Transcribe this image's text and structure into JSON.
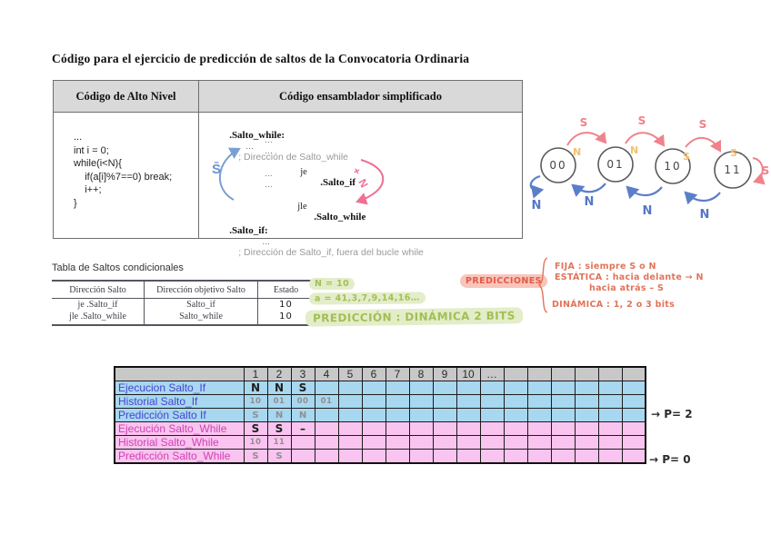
{
  "title": "Código para el ejercicio de predicción de saltos de la Convocatoria Ordinaria",
  "code_table": {
    "header_left": "Código de Alto Nivel",
    "header_right": "Código ensamblador simplificado",
    "code_lines": [
      "...",
      "int i = 0;",
      "while(i<N){",
      "    if(a[i]%7==0) break;",
      "    i++;",
      "}"
    ],
    "asm": {
      "label_while": ".Salto_while:",
      "dots": "...",
      "comment_while": "; Dirección de Salto_while",
      "je": "je",
      "je_target": ".Salto_if",
      "jle": "jle",
      "jle_target": ".Salto_while",
      "label_if": ".Salto_if:",
      "comment_if": "; Dirección de Salto_if, fuera del bucle while",
      "blue_label": "S̄",
      "pink_label": "+ N"
    }
  },
  "state_diagram": {
    "states": [
      "00",
      "01",
      "10",
      "11"
    ],
    "taken_label": "S",
    "not_taken_label": "N",
    "outputs": [
      "N",
      "N",
      "S",
      "S"
    ]
  },
  "saltos_table": {
    "caption": "Tabla de Saltos condicionales",
    "headers": [
      "Dirección Salto",
      "Dirección objetivo Salto",
      "Estado"
    ],
    "rows": [
      {
        "salto": "je .Salto_if",
        "objetivo": "Salto_if",
        "estado": "10"
      },
      {
        "salto": "jle .Salto_while",
        "objetivo": "Salto_while",
        "estado": "10"
      }
    ]
  },
  "notes": {
    "green": [
      "N = 10",
      "a = 41,3,7,9,14,16…",
      "PREDICCIÓN : DINÁMICA 2 BITS"
    ],
    "pink_label": "PREDICCIONES",
    "red_items": [
      "FIJA : siempre S o N",
      "ESTÁTICA : hacia delante → N",
      "hacia atrás – S",
      "DINÁMICA : 1, 2 o 3 bits"
    ]
  },
  "exec_table": {
    "col_headers": [
      "",
      "1",
      "2",
      "3",
      "4",
      "5",
      "6",
      "7",
      "8",
      "9",
      "10",
      "…",
      "",
      "",
      "",
      "",
      "",
      ""
    ],
    "rows": [
      {
        "label": "Ejecucion Salto_If",
        "cells": [
          "N",
          "N",
          "S",
          "",
          "",
          "",
          "",
          "",
          "",
          "",
          "",
          "",
          "",
          "",
          "",
          "",
          ""
        ]
      },
      {
        "label": "Historial Salto_If",
        "cells": [
          "10",
          "01",
          "00",
          "01",
          "",
          "",
          "",
          "",
          "",
          "",
          "",
          "",
          "",
          "",
          "",
          "",
          ""
        ]
      },
      {
        "label": "Predicción Salto If",
        "cells": [
          "S",
          "N",
          "N",
          "",
          "",
          "",
          "",
          "",
          "",
          "",
          "",
          "",
          "",
          "",
          "",
          "",
          ""
        ]
      },
      {
        "label": "Ejecución Salto_While",
        "cells": [
          "S",
          "S",
          "–",
          "",
          "",
          "",
          "",
          "",
          "",
          "",
          "",
          "",
          "",
          "",
          "",
          "",
          ""
        ]
      },
      {
        "label": "Historial Salto_While",
        "cells": [
          "10",
          "11",
          "",
          "",
          "",
          "",
          "",
          "",
          "",
          "",
          "",
          "",
          "",
          "",
          "",
          "",
          ""
        ]
      },
      {
        "label": "Predicción Salto_While",
        "cells": [
          "S",
          "S",
          "",
          "",
          "",
          "",
          "",
          "",
          "",
          "",
          "",
          "",
          "",
          "",
          "",
          "",
          ""
        ]
      }
    ]
  },
  "annotations": {
    "pred_if": "→ P= 2",
    "pred_while": "→ P= 0"
  }
}
